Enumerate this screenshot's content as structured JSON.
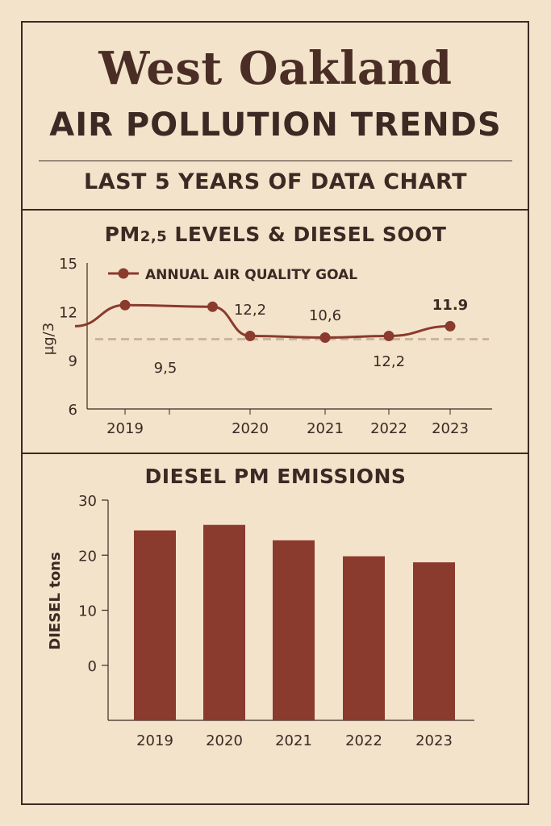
{
  "header": {
    "title": "West Oakland",
    "subtitle": "AIR POLLUTION TRENDS",
    "tagline": "LAST 5 YEARS OF DATA CHART"
  },
  "colors": {
    "background": "#f3e3ca",
    "ink": "#3b2a24",
    "series": "#8b3a2e",
    "goal": "#c9b79c"
  },
  "chart_data": [
    {
      "type": "line",
      "title_main": "PM",
      "title_sub": "2,5",
      "title_rest": " LEVELS & DIESEL SOOT",
      "ylabel": "µg/3",
      "ylim": [
        6,
        15
      ],
      "yticks": [
        "15",
        "12",
        "9",
        "6"
      ],
      "xticks": [
        "2019",
        "2020",
        "2021",
        "2022",
        "2023"
      ],
      "legend": "ANNUAL AIR QUALITY GOAL",
      "goal": 10.3,
      "series": [
        {
          "name": "PM2.5",
          "x": [
            2018.6,
            2019,
            2019.7,
            2020,
            2021,
            2022,
            2023
          ],
          "values": [
            11.1,
            12.4,
            12.3,
            10.5,
            10.4,
            10.5,
            11.1
          ]
        }
      ],
      "annotations": [
        "9,5",
        "12,2",
        "10,6",
        "12,2",
        "11.9"
      ]
    },
    {
      "type": "bar",
      "title": "DIESEL PM EMISSIONS",
      "ylabel": "DIESEL tons",
      "categories": [
        "2019",
        "2020",
        "2021",
        "2022",
        "2023"
      ],
      "values": [
        24.5,
        25.5,
        22.7,
        19.8,
        18.7
      ],
      "yticks": [
        "30",
        "20",
        "10",
        "0"
      ],
      "ylim": [
        -10,
        30
      ]
    }
  ]
}
